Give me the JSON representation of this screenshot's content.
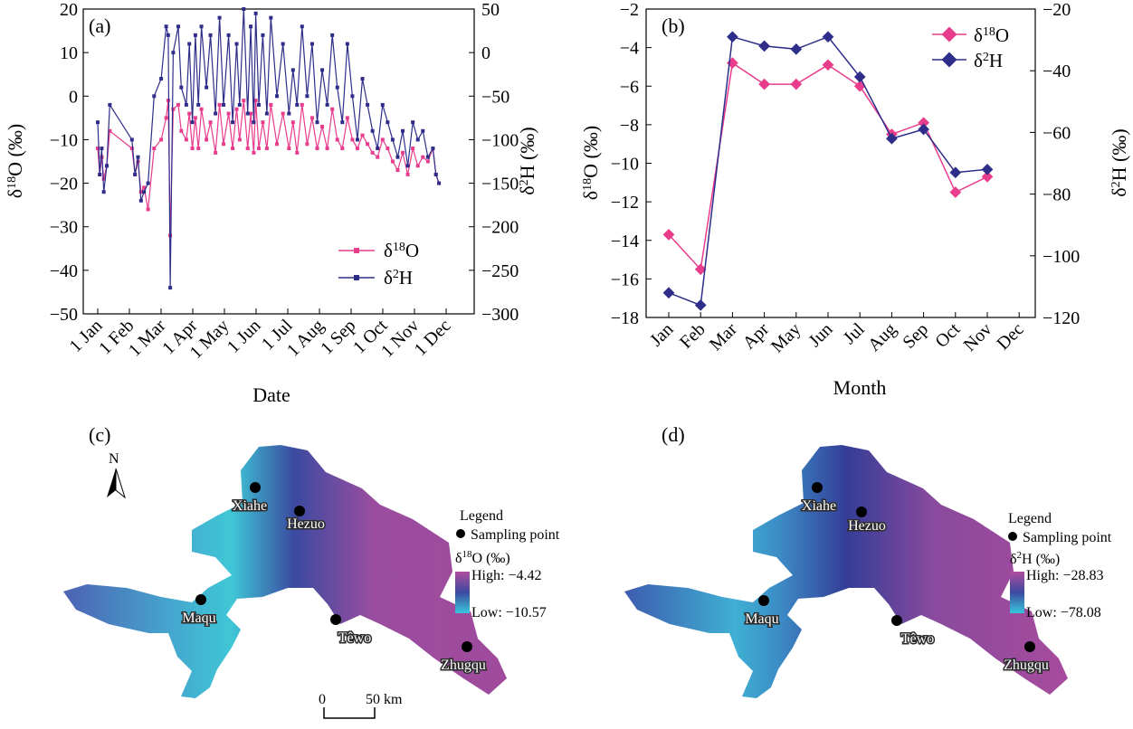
{
  "colors": {
    "o18": "#e83c8c",
    "h2": "#2e2e8a"
  },
  "panels": {
    "a": {
      "label": "(a)",
      "xlabel": "Date",
      "ylabel_left": "δ18O (‰)",
      "ylabel_right": "δ2H (‰)",
      "xticks": [
        "1 Jan",
        "1 Feb",
        "1 Mar",
        "1 Apr",
        "1 May",
        "1 Jun",
        "1 Jul",
        "1 Aug",
        "1 Sep",
        "1 Oct",
        "1 Nov",
        "1 Dec"
      ],
      "yticks_left": [
        "20",
        "10",
        "0",
        "−10",
        "−20",
        "−30",
        "−40",
        "−50"
      ],
      "yticks_right": [
        "50",
        "0",
        "−50",
        "−100",
        "−150",
        "−200",
        "−250",
        "−300"
      ],
      "legend": [
        "δ18O",
        "δ2H"
      ]
    },
    "b": {
      "label": "(b)",
      "xlabel": "Month",
      "ylabel_left": "δ18O (‰)",
      "ylabel_right": "δ2H (‰)",
      "xticks": [
        "Jan",
        "Feb",
        "Mar",
        "Apr",
        "May",
        "Jun",
        "Jul",
        "Aug",
        "Sep",
        "Oct",
        "Nov",
        "Dec"
      ],
      "yticks_left": [
        "−2",
        "−4",
        "−6",
        "−8",
        "−10",
        "−12",
        "−14",
        "−16",
        "−18"
      ],
      "yticks_right": [
        "−20",
        "−40",
        "−60",
        "−80",
        "−100",
        "−120"
      ],
      "legend": [
        "δ18O",
        "δ2H"
      ]
    },
    "c": {
      "label": "(c)",
      "north": "N",
      "legend_title": "Legend",
      "sampling_label": "Sampling point",
      "var_label": "δ18O (‰)",
      "high": "High: −4.42",
      "low": "Low: −10.57",
      "scale_zero": "0",
      "scale_end": "50 km",
      "cities": [
        "Xiahe",
        "Hezuo",
        "Maqu",
        "Têwo",
        "Zhugqu"
      ]
    },
    "d": {
      "label": "(d)",
      "legend_title": "Legend",
      "sampling_label": "Sampling point",
      "var_label": "δ2H (‰)",
      "high": "High: −28.83",
      "low": "Low: −78.08",
      "cities": [
        "Xiahe",
        "Hezuo",
        "Maqu",
        "Têwo",
        "Zhugqu"
      ]
    }
  },
  "chart_data": [
    {
      "type": "line",
      "panel": "a",
      "title": "",
      "xlabel": "Date",
      "ylabel": "δ18O (‰)",
      "y2label": "δ2H (‰)",
      "xlim": [
        0,
        365
      ],
      "ylim": [
        -50,
        20
      ],
      "y2lim": [
        -300,
        50
      ],
      "series": [
        {
          "name": "δ18O",
          "axis": "left",
          "x": [
            0,
            2,
            4,
            6,
            9,
            12,
            34,
            37,
            40,
            43,
            46,
            50,
            56,
            63,
            68,
            70,
            72,
            75,
            80,
            83,
            88,
            91,
            94,
            97,
            100,
            103,
            108,
            112,
            117,
            121,
            125,
            130,
            134,
            138,
            141,
            145,
            149,
            152,
            155,
            157,
            160,
            164,
            168,
            172,
            178,
            184,
            190,
            194,
            198,
            203,
            208,
            213,
            218,
            223,
            228,
            233,
            238,
            243,
            248,
            253,
            258,
            263,
            268,
            273,
            278,
            283,
            288,
            293,
            298,
            303,
            308,
            313,
            318,
            323,
            328,
            333,
            336,
            339
          ],
          "y": [
            -12,
            -18,
            -14,
            -19,
            -16,
            -8,
            -12,
            -18,
            -15,
            -22,
            -21,
            -26,
            -12,
            -10,
            -5,
            -1,
            -32,
            -3,
            -2,
            -8,
            -10,
            -4,
            -12,
            -5,
            -12,
            -3,
            -10,
            -6,
            -13,
            -2,
            -11,
            -4,
            -12,
            -3,
            -10,
            -1,
            -12,
            -4,
            -13,
            -1,
            -12,
            -6,
            -12,
            -2,
            -11,
            -4,
            -12,
            -6,
            -13,
            -2,
            -11,
            -5,
            -12,
            -7,
            -12,
            -3,
            -10,
            -12,
            -5,
            -10,
            -12,
            -9,
            -11,
            -13,
            -14,
            -10,
            -12,
            -15,
            -17,
            -13,
            -18,
            -12,
            -16,
            -14,
            -15,
            -12,
            -18,
            -20
          ]
        },
        {
          "name": "δ2H",
          "axis": "right",
          "x": [
            0,
            2,
            4,
            6,
            9,
            12,
            34,
            37,
            40,
            43,
            46,
            50,
            56,
            63,
            68,
            70,
            72,
            75,
            80,
            83,
            88,
            91,
            94,
            97,
            100,
            103,
            108,
            112,
            117,
            121,
            125,
            130,
            134,
            138,
            141,
            145,
            149,
            152,
            155,
            157,
            160,
            164,
            168,
            172,
            178,
            184,
            190,
            194,
            198,
            203,
            208,
            213,
            218,
            223,
            228,
            233,
            238,
            243,
            248,
            253,
            258,
            263,
            268,
            273,
            278,
            283,
            288,
            293,
            298,
            303,
            308,
            313,
            318,
            323,
            328,
            333,
            336,
            339
          ],
          "y": [
            -80,
            -140,
            -110,
            -160,
            -130,
            -60,
            -100,
            -140,
            -120,
            -170,
            -160,
            -150,
            -50,
            -30,
            30,
            20,
            -270,
            0,
            30,
            -40,
            -60,
            10,
            -80,
            20,
            -60,
            30,
            -40,
            20,
            -70,
            40,
            -60,
            20,
            -80,
            10,
            -60,
            50,
            -70,
            30,
            -80,
            45,
            -60,
            20,
            -70,
            40,
            -50,
            10,
            -70,
            -20,
            -60,
            30,
            -50,
            10,
            -80,
            -20,
            -60,
            20,
            -40,
            -80,
            10,
            -50,
            -100,
            -30,
            -60,
            -90,
            -110,
            -60,
            -80,
            -100,
            -120,
            -90,
            -130,
            -80,
            -100,
            -90,
            -120,
            -110,
            -140,
            -150
          ]
        }
      ]
    },
    {
      "type": "line",
      "panel": "b",
      "title": "",
      "categories": [
        "Jan",
        "Feb",
        "Mar",
        "Apr",
        "May",
        "Jun",
        "Jul",
        "Aug",
        "Sep",
        "Oct",
        "Nov",
        "Dec"
      ],
      "xlabel": "Month",
      "ylabel": "δ18O (‰)",
      "y2label": "δ2H (‰)",
      "ylim": [
        -18,
        -2
      ],
      "y2lim": [
        -120,
        -20
      ],
      "series": [
        {
          "name": "δ18O",
          "axis": "left",
          "values": [
            -13.7,
            -15.5,
            -4.8,
            -5.9,
            -5.9,
            -4.9,
            -6.0,
            -8.5,
            -7.9,
            -11.5,
            -10.7,
            null
          ]
        },
        {
          "name": "δ2H",
          "axis": "right",
          "values": [
            -112,
            -116,
            -29,
            -32,
            -33,
            -29,
            -42,
            -62,
            -59,
            -73,
            -72,
            null
          ]
        }
      ]
    }
  ]
}
